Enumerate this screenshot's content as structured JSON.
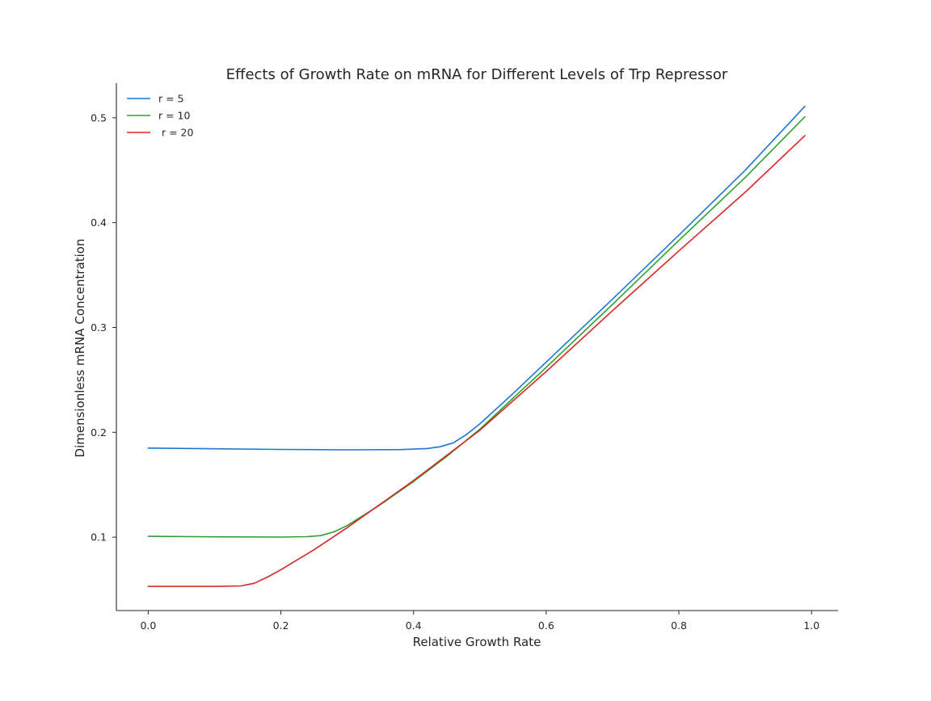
{
  "chart_data": {
    "type": "line",
    "title": "Effects of Growth Rate on mRNA for Different Levels of Trp Repressor",
    "xlabel": "Relative Growth Rate",
    "ylabel": "Dimensionless mRNA Concentration",
    "xlim": [
      -0.048,
      1.04
    ],
    "ylim": [
      0.03,
      0.533
    ],
    "x_ticks": [
      "0.0",
      "0.2",
      "0.4",
      "0.6",
      "0.8",
      "1.0"
    ],
    "y_ticks": [
      "0.1",
      "0.2",
      "0.3",
      "0.4",
      "0.5"
    ],
    "grid": false,
    "legend_position": "top-left",
    "series": [
      {
        "name": "r = 5",
        "color": "#1f77d4",
        "x": [
          0.0,
          0.1,
          0.2,
          0.3,
          0.38,
          0.42,
          0.44,
          0.46,
          0.48,
          0.5,
          0.55,
          0.6,
          0.7,
          0.8,
          0.9,
          0.99
        ],
        "y": [
          0.185,
          0.1843,
          0.1837,
          0.1833,
          0.1835,
          0.1845,
          0.1862,
          0.19,
          0.198,
          0.208,
          0.237,
          0.267,
          0.327,
          0.388,
          0.45,
          0.511
        ]
      },
      {
        "name": "r = 10",
        "color": "#2ca02c",
        "x": [
          0.0,
          0.1,
          0.2,
          0.24,
          0.26,
          0.28,
          0.3,
          0.35,
          0.4,
          0.45,
          0.5,
          0.6,
          0.7,
          0.8,
          0.9,
          0.99
        ],
        "y": [
          0.1008,
          0.1003,
          0.1001,
          0.1005,
          0.1015,
          0.105,
          0.111,
          0.131,
          0.153,
          0.177,
          0.203,
          0.262,
          0.322,
          0.383,
          0.443,
          0.501
        ]
      },
      {
        "name": " r = 20",
        "color": "#d62728",
        "x": [
          0.0,
          0.1,
          0.14,
          0.16,
          0.18,
          0.2,
          0.25,
          0.3,
          0.4,
          0.5,
          0.6,
          0.7,
          0.8,
          0.9,
          0.99
        ],
        "y": [
          0.053,
          0.053,
          0.0535,
          0.056,
          0.062,
          0.069,
          0.088,
          0.109,
          0.154,
          0.202,
          0.258,
          0.316,
          0.373,
          0.429,
          0.483
        ]
      }
    ]
  }
}
